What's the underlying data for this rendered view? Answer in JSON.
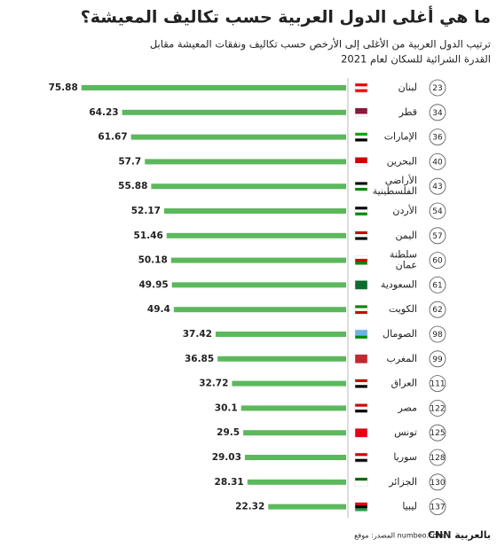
{
  "chart_data": {
    "type": "bar",
    "orientation": "horizontal",
    "title": "ما هي أغلى الدول العربية حسب تكاليف المعيشة؟",
    "subtitle": [
      "ترتيب الدول العربية من الأغلى إلى الأرخص حسب تكاليف ونفقات المعيشة مقابل",
      "القدرة الشرائية للسكان لعام 2021"
    ],
    "categories": [
      "لبنان",
      "قطر",
      "الإمارات",
      "البحرين",
      "الأراضي الفلسطينية",
      "الأردن",
      "اليمن",
      "سلطنة عمان",
      "السعودية",
      "الكويت",
      "الصومال",
      "المغرب",
      "العراق",
      "مصر",
      "تونس",
      "سوريا",
      "الجزائر",
      "ليبيا"
    ],
    "ranks": [
      23,
      34,
      36,
      40,
      43,
      54,
      57,
      60,
      61,
      62,
      98,
      99,
      111,
      122,
      125,
      128,
      130,
      137
    ],
    "values": [
      75.88,
      64.23,
      61.67,
      57.7,
      55.88,
      52.17,
      51.46,
      50.18,
      49.95,
      49.4,
      37.42,
      36.85,
      32.72,
      30.1,
      29.5,
      29.03,
      28.31,
      22.32
    ],
    "color": "#5cb85c",
    "source": "المصدر: موقع numbeo.com",
    "logo": "CNN بالعربية"
  }
}
